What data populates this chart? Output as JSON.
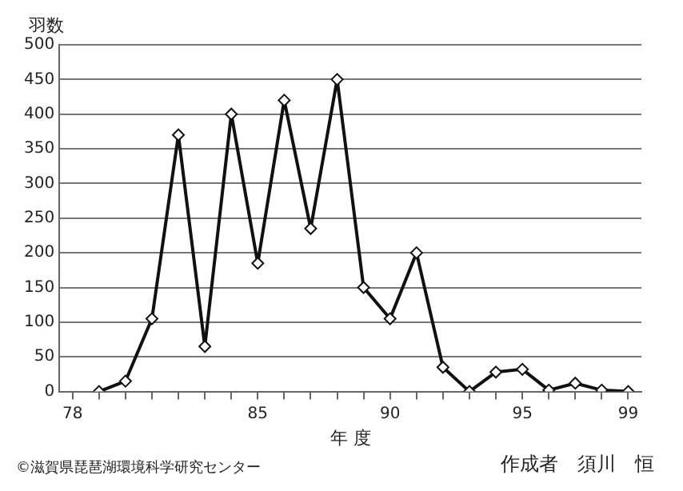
{
  "chart_data": {
    "type": "line",
    "ylabel": "羽数",
    "xlabel": "年 度",
    "x": [
      79,
      80,
      81,
      82,
      83,
      84,
      85,
      86,
      87,
      88,
      89,
      90,
      91,
      92,
      93,
      94,
      95,
      96,
      97,
      98,
      99
    ],
    "series": [
      {
        "color": "#111111",
        "values": [
          0,
          15,
          105,
          370,
          65,
          400,
          185,
          420,
          235,
          450,
          150,
          105,
          200,
          35,
          0,
          28,
          32,
          2,
          12,
          2,
          0
        ]
      }
    ],
    "xlim": [
      77.5,
      99.5
    ],
    "xticks": [
      78,
      {
        "value": 79,
        "label": null
      },
      {
        "value": 80,
        "label": null
      },
      {
        "value": 81,
        "label": null
      },
      {
        "value": 82,
        "label": null
      },
      {
        "value": 83,
        "label": null
      },
      {
        "value": 84,
        "label": null
      },
      85,
      {
        "value": 86,
        "label": null
      },
      {
        "value": 87,
        "label": null
      },
      {
        "value": 88,
        "label": null
      },
      {
        "value": 89,
        "label": null
      },
      90,
      {
        "value": 91,
        "label": null
      },
      {
        "value": 92,
        "label": null
      },
      {
        "value": 93,
        "label": null
      },
      {
        "value": 94,
        "label": null
      },
      95,
      {
        "value": 96,
        "label": null
      },
      {
        "value": 97,
        "label": null
      },
      {
        "value": 98,
        "label": null
      },
      99
    ],
    "ylim": [
      0,
      500
    ],
    "yticks": [
      0,
      50,
      100,
      150,
      200,
      250,
      300,
      350,
      400,
      450,
      500
    ],
    "grid": "y",
    "marker": "diamond",
    "line_style": "solid",
    "legend": false,
    "annotations": [
      "©滋賀県琵琶湖環境科学研究センター",
      "作成者　須川　恒"
    ]
  }
}
